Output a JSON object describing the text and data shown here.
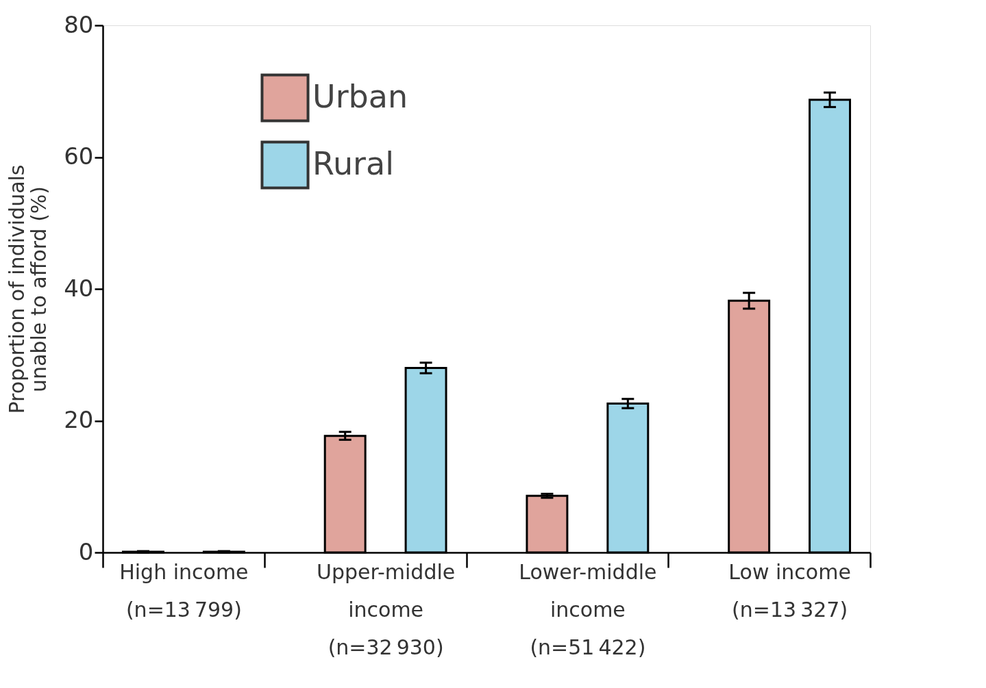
{
  "chart_data": {
    "type": "bar",
    "ylabel": "Proportion of individuals\nunable to afford (%)",
    "categories": [
      "High income\n(n=13 799)",
      "Upper-middle\nincome\n(n=32 930)",
      "Lower-middle\nincome\n(n=51 422)",
      "Low income\n(n=13 327)"
    ],
    "series": [
      {
        "name": "Urban",
        "color": "#e0a49c",
        "values": [
          0.1,
          17.7,
          8.6,
          38.2
        ],
        "errors": [
          0.1,
          0.6,
          0.3,
          1.2
        ]
      },
      {
        "name": "Rural",
        "color": "#9dd6e8",
        "values": [
          0.1,
          28.0,
          22.6,
          68.7
        ],
        "errors": [
          0.1,
          0.8,
          0.7,
          1.1
        ]
      }
    ],
    "ylim": [
      0,
      80
    ],
    "yticks": [
      0,
      20,
      40,
      60,
      80
    ],
    "grid": false,
    "legend": "top left"
  }
}
